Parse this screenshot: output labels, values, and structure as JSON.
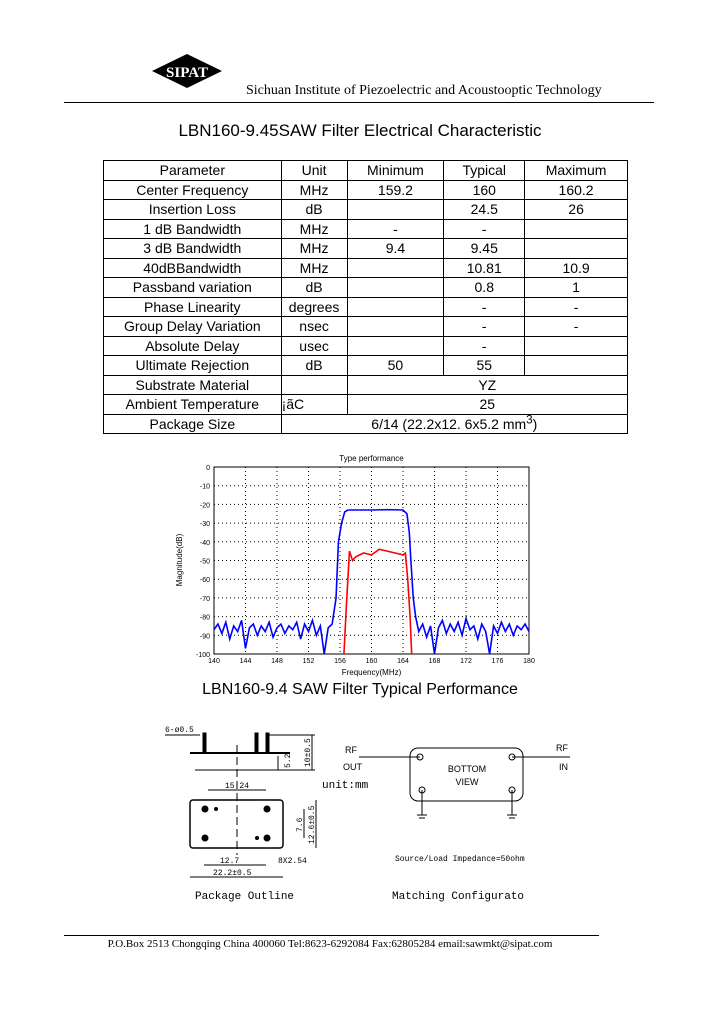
{
  "header": {
    "logo_text": "SIPAT",
    "institute": "Sichuan Institute of Piezoelectric and Acoustooptic Technology"
  },
  "title": "LBN160-9.45SAW Filter Electrical Characteristic",
  "table": {
    "headers": [
      "Parameter",
      "Unit",
      "Minimum",
      "Typical",
      "Maximum"
    ],
    "rows": [
      [
        "Center Frequency",
        "MHz",
        "159.2",
        "160",
        "160.2"
      ],
      [
        "Insertion Loss",
        "dB",
        "",
        "24.5",
        "26"
      ],
      [
        "1 dB Bandwidth",
        "MHz",
        "-",
        "-",
        ""
      ],
      [
        "3 dB Bandwidth",
        "MHz",
        "9.4",
        "9.45",
        ""
      ],
      [
        "40dBBandwidth",
        "MHz",
        "",
        "10.81",
        "10.9"
      ],
      [
        "Passband variation",
        "dB",
        "",
        "0.8",
        "1"
      ],
      [
        "Phase Linearity",
        "degrees",
        "",
        "-",
        "-"
      ],
      [
        "Group Delay Variation",
        "nsec",
        "",
        "-",
        "-"
      ],
      [
        "Absolute Delay",
        "usec",
        "",
        "-",
        ""
      ],
      [
        "Ultimate Rejection",
        "dB",
        "50",
        "55",
        ""
      ]
    ],
    "substrate": {
      "label": "Substrate Material",
      "value": "YZ"
    },
    "temperature": {
      "label": "Ambient Temperature",
      "unit": "¡ãC",
      "value": "25"
    },
    "package": {
      "label": "Package Size",
      "value": "6/14  (22.2x12.    6x5.2 mm",
      "superscript": "3",
      "close": ")"
    }
  },
  "chart_data": {
    "type": "line",
    "title": "Type performance",
    "xlabel": "Frequency(MHz)",
    "ylabel": "Magnitude(dB)",
    "xlim": [
      140,
      180
    ],
    "ylim": [
      -100,
      0
    ],
    "grid": true,
    "xticks": [
      140,
      144,
      148,
      152,
      156,
      160,
      164,
      168,
      172,
      176,
      180
    ],
    "yticks": [
      0,
      -10,
      -20,
      -30,
      -40,
      -50,
      -60,
      -70,
      -80,
      -90,
      -100
    ],
    "series": [
      {
        "color": "#0000ff",
        "points": [
          [
            140,
            -87
          ],
          [
            140.5,
            -84
          ],
          [
            141,
            -89
          ],
          [
            141.5,
            -83
          ],
          [
            142,
            -92
          ],
          [
            142.5,
            -85
          ],
          [
            143,
            -88
          ],
          [
            143.5,
            -82
          ],
          [
            144,
            -97
          ],
          [
            144.5,
            -86
          ],
          [
            145,
            -84
          ],
          [
            145.5,
            -90
          ],
          [
            146,
            -85
          ],
          [
            146.5,
            -88
          ],
          [
            147,
            -83
          ],
          [
            147.5,
            -91
          ],
          [
            148,
            -86
          ],
          [
            148.5,
            -84
          ],
          [
            149,
            -89
          ],
          [
            149.5,
            -85
          ],
          [
            150,
            -87
          ],
          [
            150.5,
            -83
          ],
          [
            151,
            -92
          ],
          [
            151.5,
            -84
          ],
          [
            152,
            -88
          ],
          [
            152.5,
            -82
          ],
          [
            153,
            -90
          ],
          [
            153.5,
            -85
          ],
          [
            154,
            -100
          ],
          [
            154.5,
            -86
          ],
          [
            155,
            -84
          ],
          [
            155.5,
            -70
          ],
          [
            155.8,
            -40
          ],
          [
            156.2,
            -30
          ],
          [
            156.6,
            -24
          ],
          [
            157,
            -23
          ],
          [
            160,
            -23
          ],
          [
            162,
            -22.8
          ],
          [
            164,
            -23
          ],
          [
            164.5,
            -25
          ],
          [
            164.8,
            -35
          ],
          [
            165,
            -50
          ],
          [
            165.3,
            -70
          ],
          [
            165.6,
            -80
          ],
          [
            166,
            -88
          ],
          [
            166.5,
            -84
          ],
          [
            167,
            -91
          ],
          [
            167.5,
            -85
          ],
          [
            168,
            -100
          ],
          [
            168.5,
            -86
          ],
          [
            169,
            -82
          ],
          [
            169.5,
            -89
          ],
          [
            170,
            -84
          ],
          [
            170.5,
            -88
          ],
          [
            171,
            -83
          ],
          [
            171.5,
            -90
          ],
          [
            172,
            -81
          ],
          [
            172.5,
            -87
          ],
          [
            173,
            -85
          ],
          [
            173.5,
            -92
          ],
          [
            174,
            -84
          ],
          [
            174.5,
            -88
          ],
          [
            175,
            -100
          ],
          [
            175.5,
            -85
          ],
          [
            176,
            -89
          ],
          [
            176.5,
            -83
          ],
          [
            177,
            -88
          ],
          [
            177.5,
            -84
          ],
          [
            178,
            -90
          ],
          [
            178.5,
            -85
          ],
          [
            179,
            -87
          ],
          [
            179.5,
            -84
          ],
          [
            180,
            -88
          ]
        ]
      },
      {
        "color": "#ff0000",
        "points": [
          [
            156.5,
            -100
          ],
          [
            156.8,
            -75
          ],
          [
            157,
            -60
          ],
          [
            157.2,
            -45
          ],
          [
            157.6,
            -50
          ],
          [
            158,
            -48
          ],
          [
            159,
            -46
          ],
          [
            160,
            -47
          ],
          [
            161,
            -44
          ],
          [
            162,
            -45
          ],
          [
            163,
            -46
          ],
          [
            164,
            -47
          ],
          [
            164.3,
            -46
          ],
          [
            164.6,
            -60
          ],
          [
            164.9,
            -80
          ],
          [
            165.1,
            -100
          ]
        ]
      }
    ]
  },
  "performance_title": "LBN160-9.4 SAW Filter Typical Performance",
  "package_outline": {
    "caption": "Package Outline",
    "unit": "unit:mm",
    "dims": [
      "6-ø0.5",
      "10±0.5",
      "5.2",
      "15.24",
      "7.6",
      "12.6±0.5",
      "12.7",
      "8X2.54",
      "22.2±0.5"
    ]
  },
  "matching": {
    "caption": "Matching Configurato",
    "rf_out": [
      "RF",
      "OUT"
    ],
    "rf_in": [
      "RF",
      "IN"
    ],
    "view": [
      "BOTTOM",
      "VIEW"
    ],
    "impedance": "Source/Load Impedance=50ohm"
  },
  "footer": "P.O.Box 2513 Chongqing China 400060   Tel:8623-6292084   Fax:62805284   email:sawmkt@sipat.com"
}
